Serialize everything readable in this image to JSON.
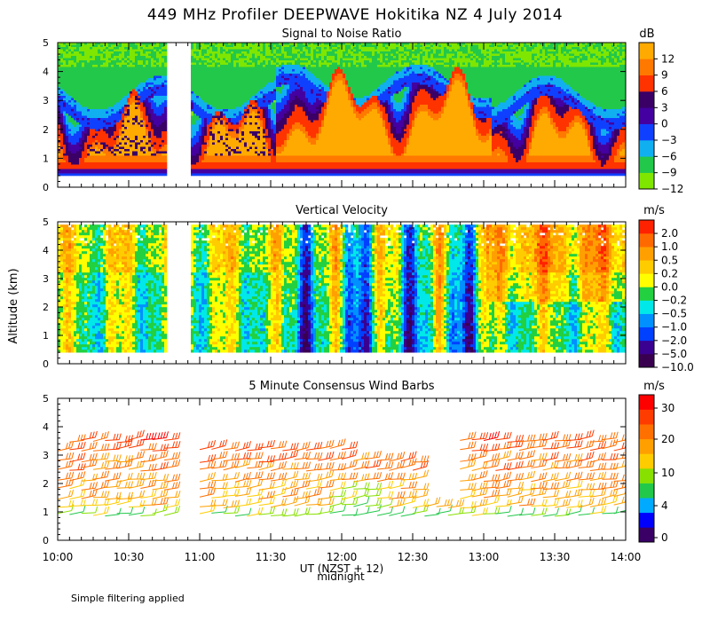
{
  "title": "449 MHz Profiler DEEPWAVE Hokitika NZ  4 July 2014",
  "ylabel": "Altitude (km)",
  "xlabel": "UT  (NZST + 12)",
  "xnote": "midnight",
  "footnote": "Simple filtering applied",
  "x_ticks": [
    "10:00",
    "10:30",
    "11:00",
    "11:30",
    "12:00",
    "12:30",
    "13:00",
    "13:30",
    "14:00"
  ],
  "y_ticks": [
    "0",
    "1",
    "2",
    "3",
    "4",
    "5"
  ],
  "colors": {
    "snr": [
      "#7fe600",
      "#22c84a",
      "#10b0f0",
      "#1040ff",
      "#4400a0",
      "#3a0066",
      "#ff3300",
      "#ff7800",
      "#ffaa00"
    ],
    "vv": [
      "#3a0050",
      "#3a0090",
      "#0040ff",
      "#0090ff",
      "#00e8e8",
      "#22d040",
      "#ffff00",
      "#ffcc00",
      "#ffa000",
      "#ff6a00",
      "#ff2200"
    ],
    "wind": [
      "#3a0066",
      "#0000ff",
      "#00aaff",
      "#22c84a",
      "#88e000",
      "#ffcc00",
      "#ffa000",
      "#ff7000",
      "#ff3c00",
      "#ff0000"
    ]
  },
  "chart_data": [
    {
      "type": "heatmap",
      "title": "Signal to Noise Ratio",
      "units": "dB",
      "colorbar_labels": [
        "12",
        "9",
        "6",
        "3",
        "0",
        "−3",
        "−6",
        "−9",
        "−12"
      ],
      "xlim": [
        "10:00",
        "14:00"
      ],
      "ylim": [
        0,
        5
      ],
      "ylabel": "Altitude (km)",
      "data_gaps_ut": [
        [
          "10:45",
          "10:55"
        ]
      ],
      "valid_altitude_km": [
        0.4,
        5.0
      ]
    },
    {
      "type": "heatmap",
      "title": "Vertical Velocity",
      "units": "m/s",
      "colorbar_labels": [
        "2.0",
        "1.0",
        "0.5",
        "0.2",
        "0.0",
        "−0.2",
        "−0.5",
        "−1.0",
        "−2.0",
        "−5.0",
        "−10.0"
      ],
      "xlim": [
        "10:00",
        "14:00"
      ],
      "ylim": [
        0,
        5
      ],
      "ylabel": "Altitude (km)",
      "data_gaps_ut": [
        [
          "10:45",
          "10:55"
        ]
      ],
      "valid_altitude_km": [
        0.4,
        4.9
      ]
    },
    {
      "type": "scatter",
      "title": "5 Minute Consensus Wind Barbs",
      "units": "m/s",
      "colorbar_labels": [
        "30",
        "20",
        "10",
        "4",
        "0"
      ],
      "xlim": [
        "10:00",
        "14:00"
      ],
      "ylim": [
        0,
        5
      ],
      "ylabel": "Altitude (km)",
      "data_gaps_ut": [
        [
          "10:45",
          "10:55"
        ]
      ],
      "barb_layer_altitudes_km": [
        0.9,
        1.2,
        1.5,
        1.8,
        2.1,
        2.5,
        2.8,
        3.2,
        3.5
      ]
    }
  ]
}
